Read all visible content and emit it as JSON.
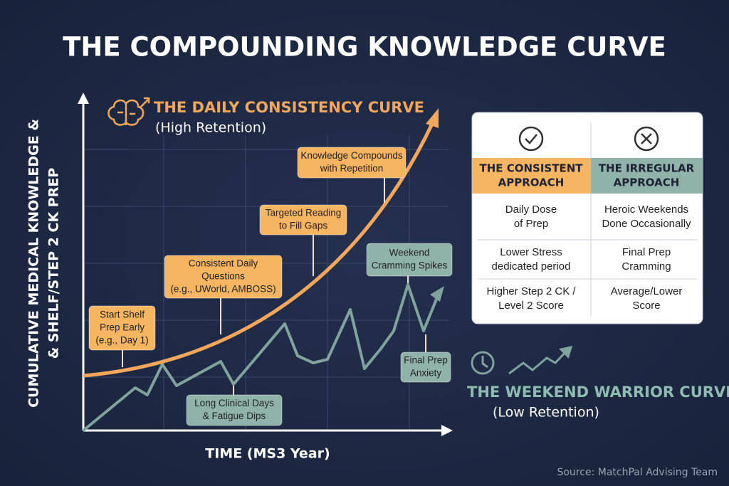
{
  "title": "THE COMPOUNDING KNOWLEDGE CURVE",
  "y_axis_label": [
    "CUMULATIVE MEDICAL KNOWLEDGE &",
    "& SHELF/STEP 2 CK PREP"
  ],
  "x_axis_label": "TIME (MS3 Year)",
  "consistency_curve": {
    "title": "THE DAILY CONSISTENCY CURVE",
    "subtitle": "(High Retention)"
  },
  "warrior_curve": {
    "title": "THE WEEKEND WARRIOR CURVE",
    "subtitle": "(Low Retention)"
  },
  "callouts": [
    {
      "lines": [
        "Start Shelf",
        "Prep Early",
        "(e.g., Day 1)"
      ]
    },
    {
      "lines": [
        "Consistent Daily",
        "Questions",
        "(e.g., UWorld, AMBOSS)"
      ]
    },
    {
      "lines": [
        "Targeted Reading",
        "to Fill Gaps"
      ]
    },
    {
      "lines": [
        "Knowledge Compounds",
        "with Repetition"
      ]
    },
    {
      "lines": [
        "Weekend",
        "Cramming Spikes"
      ]
    },
    {
      "lines": [
        "Final Prep",
        "Anxiety"
      ]
    },
    {
      "lines": [
        "Long Clinical Days",
        "& Fatigue Dips"
      ]
    }
  ],
  "table": {
    "headers": [
      [
        "THE CONSISTENT",
        "APPROACH"
      ],
      [
        "THE IRREGULAR",
        "APPROACH"
      ]
    ],
    "rows": [
      [
        [
          "Daily Dose",
          "of Prep"
        ],
        [
          "Heroic Weekends",
          "Done Occasionally"
        ]
      ],
      [
        [
          "Lower Stress",
          "dedicated period"
        ],
        [
          "Final Prep",
          "Cramming"
        ]
      ],
      [
        [
          "Higher Step 2 CK /",
          "Level 2 Score"
        ],
        [
          "Average/Lower",
          "Score"
        ]
      ]
    ]
  },
  "source": "Source: MatchPal Advising Team"
}
